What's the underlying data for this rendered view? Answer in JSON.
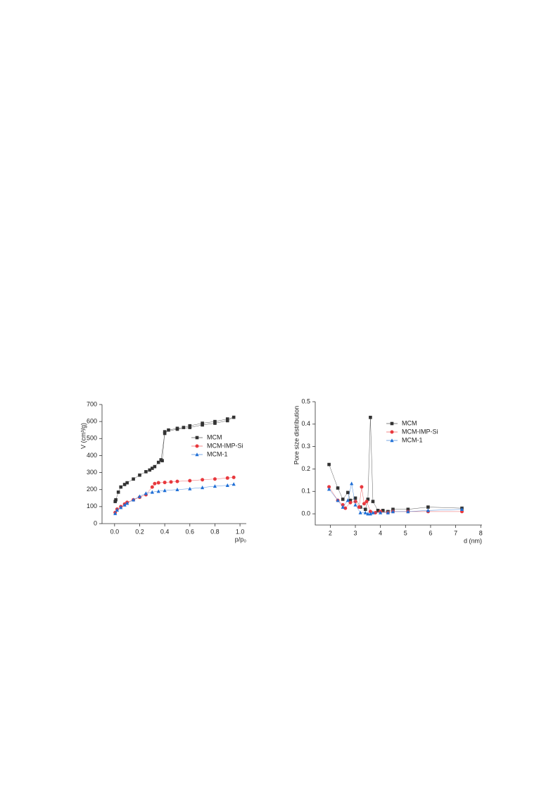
{
  "chart_data": [
    {
      "type": "line",
      "xlabel": "p/p₀",
      "ylabel": "V (cm³/g)",
      "xlim": [
        -0.1,
        1.05
      ],
      "ylim": [
        0,
        700
      ],
      "xticks": [
        {
          "value": 0,
          "label": "0.0"
        },
        0.2,
        0.4,
        0.6,
        0.8,
        {
          "value": 1,
          "label": "1.0"
        }
      ],
      "yticks": [
        0,
        100,
        200,
        300,
        400,
        500,
        600,
        700
      ],
      "series": [
        {
          "name": "MCM",
          "color": "#333333",
          "marker": "square",
          "x": [
            0.005,
            0.01,
            0.03,
            0.05,
            0.08,
            0.1,
            0.15,
            0.2,
            0.25,
            0.28,
            0.3,
            0.32,
            0.35,
            0.37,
            0.4,
            0.43,
            0.5,
            0.55,
            0.6,
            0.7,
            0.8,
            0.9,
            0.95,
            0.9,
            0.8,
            0.7,
            0.6,
            0.5,
            0.4,
            0.38
          ],
          "values": [
            130,
            140,
            185,
            215,
            230,
            240,
            262,
            285,
            305,
            315,
            325,
            335,
            360,
            375,
            530,
            550,
            560,
            565,
            575,
            590,
            600,
            615,
            625,
            605,
            590,
            580,
            565,
            555,
            540,
            370
          ]
        },
        {
          "name": "MCM-IMP-Si",
          "color": "#e8383d",
          "marker": "circle",
          "x": [
            0.005,
            0.02,
            0.05,
            0.08,
            0.1,
            0.15,
            0.2,
            0.25,
            0.3,
            0.32,
            0.35,
            0.4,
            0.45,
            0.5,
            0.6,
            0.7,
            0.8,
            0.9,
            0.95
          ],
          "values": [
            65,
            85,
            100,
            115,
            125,
            140,
            155,
            170,
            215,
            235,
            240,
            242,
            245,
            248,
            252,
            258,
            262,
            268,
            272
          ]
        },
        {
          "name": "MCM-1",
          "color": "#1f6fd6",
          "marker": "triangle",
          "x": [
            0.005,
            0.02,
            0.05,
            0.08,
            0.1,
            0.15,
            0.2,
            0.25,
            0.3,
            0.35,
            0.4,
            0.5,
            0.6,
            0.7,
            0.8,
            0.9,
            0.95
          ],
          "values": [
            60,
            80,
            95,
            110,
            120,
            140,
            160,
            178,
            185,
            190,
            195,
            200,
            205,
            212,
            220,
            225,
            232
          ]
        }
      ]
    },
    {
      "type": "line",
      "xlabel": "d (nm)",
      "ylabel": "Pore size distribution",
      "xlim": [
        1.4,
        8.05
      ],
      "ylim": [
        -0.05,
        0.5
      ],
      "xticks": [
        2,
        3,
        4,
        5,
        6,
        7,
        8
      ],
      "yticks": [
        {
          "value": 0,
          "label": "0.0"
        },
        0.1,
        0.2,
        0.3,
        0.4,
        0.5
      ],
      "series": [
        {
          "name": "MCM",
          "color": "#333333",
          "marker": "square",
          "x": [
            1.95,
            2.3,
            2.5,
            2.7,
            2.8,
            3.0,
            3.2,
            3.4,
            3.5,
            3.6,
            3.7,
            3.9,
            4.1,
            4.3,
            4.5,
            5.1,
            5.9,
            7.25
          ],
          "values": [
            0.22,
            0.115,
            0.065,
            0.095,
            0.06,
            0.07,
            0.03,
            0.02,
            0.065,
            0.43,
            0.055,
            0.015,
            0.015,
            0.01,
            0.02,
            0.02,
            0.03,
            0.025
          ]
        },
        {
          "name": "MCM-IMP-Si",
          "color": "#e8383d",
          "marker": "circle",
          "x": [
            1.95,
            2.3,
            2.5,
            2.6,
            2.8,
            3.0,
            3.15,
            3.25,
            3.35,
            3.45,
            3.6,
            3.8,
            4.0,
            4.3,
            4.5,
            5.1,
            5.9,
            7.25
          ],
          "values": [
            0.12,
            0.06,
            0.04,
            0.025,
            0.05,
            0.055,
            0.03,
            0.12,
            0.045,
            0.055,
            0.01,
            0.005,
            0.01,
            0.005,
            0.01,
            0.01,
            0.01,
            0.01
          ]
        },
        {
          "name": "MCM-1",
          "color": "#1f6fd6",
          "marker": "triangle",
          "x": [
            1.95,
            2.3,
            2.5,
            2.7,
            2.85,
            3.0,
            3.2,
            3.4,
            3.5,
            3.6,
            3.7,
            4.0,
            4.3,
            4.5,
            5.1,
            5.9,
            7.25
          ],
          "values": [
            0.11,
            0.06,
            0.03,
            0.06,
            0.135,
            0.04,
            0.005,
            0.005,
            0,
            0,
            0.005,
            0.005,
            0.005,
            0.01,
            0.01,
            0.015,
            0.02
          ]
        }
      ]
    }
  ]
}
